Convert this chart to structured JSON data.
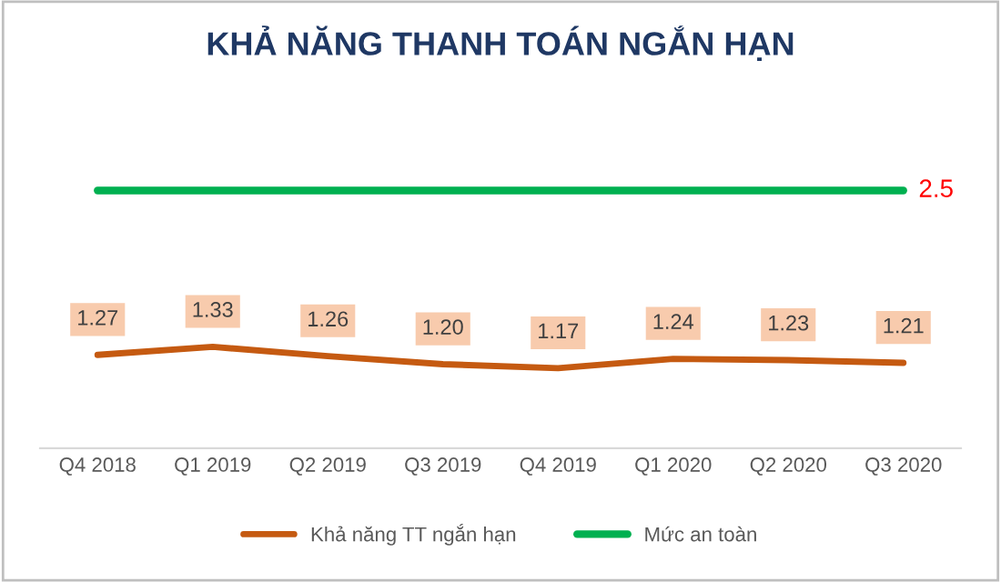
{
  "chart_data": {
    "type": "line",
    "title": "KHẢ NĂNG THANH TOÁN NGẮN HẠN",
    "categories": [
      "Q4 2018",
      "Q1 2019",
      "Q2 2019",
      "Q3 2019",
      "Q4 2019",
      "Q1 2020",
      "Q2 2020",
      "Q3 2020"
    ],
    "series": [
      {
        "name": "Khả năng TT ngắn hạn",
        "color": "#c55a11",
        "values": [
          1.27,
          1.33,
          1.26,
          1.2,
          1.17,
          1.24,
          1.23,
          1.21
        ],
        "value_labels": [
          "1.27",
          "1.33",
          "1.26",
          "1.20",
          "1.17",
          "1.24",
          "1.23",
          "1.21"
        ]
      },
      {
        "name": "Mức an toàn",
        "color": "#00b050",
        "values": [
          2.5,
          2.5,
          2.5,
          2.5,
          2.5,
          2.5,
          2.5,
          2.5
        ],
        "value_labels": [
          null,
          null,
          null,
          null,
          null,
          null,
          null,
          "2.5"
        ]
      }
    ],
    "tick_labels": "x",
    "grid": false,
    "legend": "bottom",
    "marker": "none",
    "line_style": "solid"
  }
}
